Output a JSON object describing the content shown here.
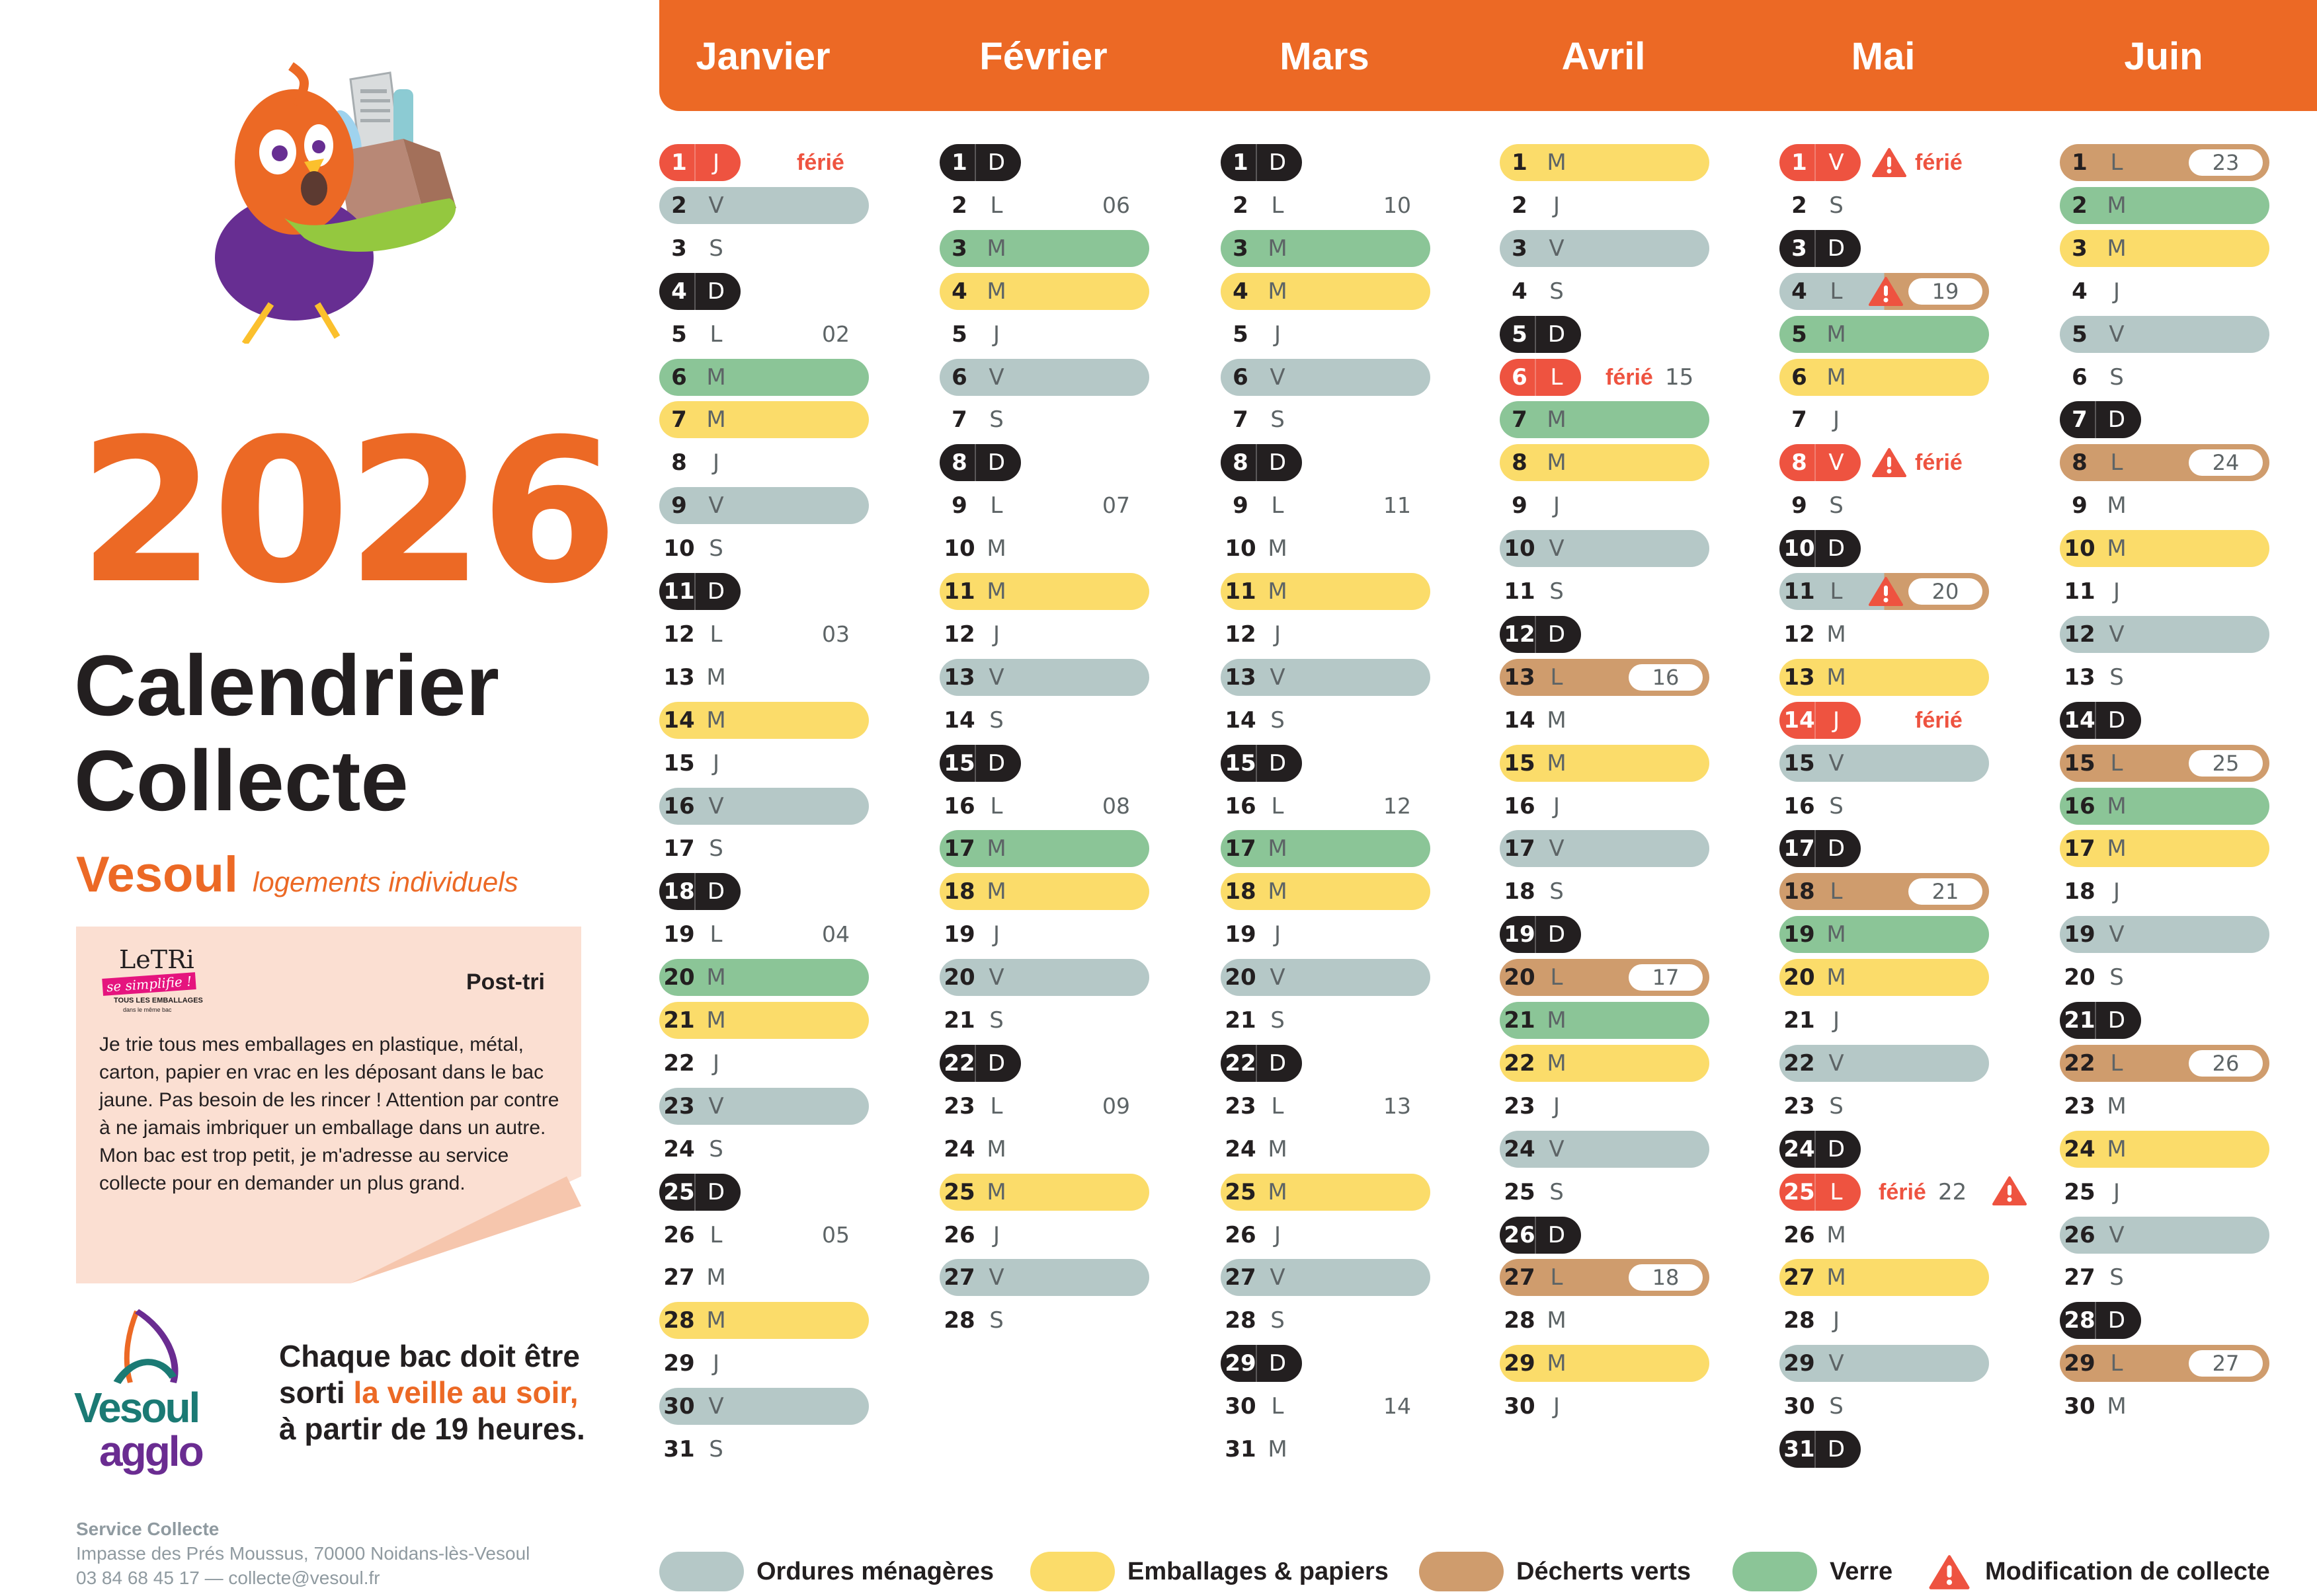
{
  "year": "2026",
  "title_line1": "Calendrier",
  "title_line2": "Collecte",
  "city": "Vesoul",
  "city_subtitle": "logements individuels",
  "postit": {
    "logo_line1": "LeTRi",
    "logo_line2": "se simplifie !",
    "logo_line3": "TOUS LES EMBALLAGES",
    "logo_line4": "dans le même bac",
    "title": "Post-tri",
    "text": "Je trie tous mes emballages en plastique, métal, carton, papier en vrac en les déposant dans le bac jaune. Pas besoin de les rincer ! Attention par contre à ne jamais imbriquer un emballage dans un autre. Mon bac est trop petit, je m'adresse au service collecte pour en demander un plus grand."
  },
  "logo": {
    "line1": "Vesoul",
    "line2": "agglo"
  },
  "notice": {
    "part1": "Chaque bac doit être",
    "part2": "sorti ",
    "highlight": "la veille au soir,",
    "part3": "à partir de 19 heures."
  },
  "contact": {
    "name": "Service Collecte",
    "address": "Impasse des Prés Moussus, 70000 Noidans-lès-Vesoul",
    "phone_email": "03 84 68 45 17  —  collecte@vesoul.fr"
  },
  "ferie_label": "férié",
  "colors": {
    "o": "#b5c8c7",
    "e": "#fbdc6a",
    "d": "#cf9c6d",
    "v": "#8bc597",
    "s": "#231f20",
    "h": "#ee5340",
    "accent": "#ec6925"
  },
  "legend": [
    {
      "key": "o",
      "label": "Ordures ménagères"
    },
    {
      "key": "e",
      "label": "Emballages & papiers"
    },
    {
      "key": "d",
      "label": "Décherts verts"
    },
    {
      "key": "v",
      "label": "Verre"
    },
    {
      "key": "warn",
      "label": "Modification de collecte"
    }
  ],
  "months": [
    {
      "name": "Janvier",
      "days": [
        {
          "n": "1",
          "d": "J",
          "t": "h",
          "ferie": true
        },
        {
          "n": "2",
          "d": "V",
          "t": "o"
        },
        {
          "n": "3",
          "d": "S"
        },
        {
          "n": "4",
          "d": "D",
          "t": "s"
        },
        {
          "n": "5",
          "d": "L",
          "week": "02"
        },
        {
          "n": "6",
          "d": "M",
          "t": "v"
        },
        {
          "n": "7",
          "d": "M",
          "t": "e"
        },
        {
          "n": "8",
          "d": "J"
        },
        {
          "n": "9",
          "d": "V",
          "t": "o"
        },
        {
          "n": "10",
          "d": "S"
        },
        {
          "n": "11",
          "d": "D",
          "t": "s"
        },
        {
          "n": "12",
          "d": "L",
          "week": "03"
        },
        {
          "n": "13",
          "d": "M"
        },
        {
          "n": "14",
          "d": "M",
          "t": "e"
        },
        {
          "n": "15",
          "d": "J"
        },
        {
          "n": "16",
          "d": "V",
          "t": "o"
        },
        {
          "n": "17",
          "d": "S"
        },
        {
          "n": "18",
          "d": "D",
          "t": "s"
        },
        {
          "n": "19",
          "d": "L",
          "week": "04"
        },
        {
          "n": "20",
          "d": "M",
          "t": "v"
        },
        {
          "n": "21",
          "d": "M",
          "t": "e"
        },
        {
          "n": "22",
          "d": "J"
        },
        {
          "n": "23",
          "d": "V",
          "t": "o"
        },
        {
          "n": "24",
          "d": "S"
        },
        {
          "n": "25",
          "d": "D",
          "t": "s"
        },
        {
          "n": "26",
          "d": "L",
          "week": "05"
        },
        {
          "n": "27",
          "d": "M"
        },
        {
          "n": "28",
          "d": "M",
          "t": "e"
        },
        {
          "n": "29",
          "d": "J"
        },
        {
          "n": "30",
          "d": "V",
          "t": "o"
        },
        {
          "n": "31",
          "d": "S"
        }
      ]
    },
    {
      "name": "Février",
      "days": [
        {
          "n": "1",
          "d": "D",
          "t": "s"
        },
        {
          "n": "2",
          "d": "L",
          "week": "06"
        },
        {
          "n": "3",
          "d": "M",
          "t": "v"
        },
        {
          "n": "4",
          "d": "M",
          "t": "e"
        },
        {
          "n": "5",
          "d": "J"
        },
        {
          "n": "6",
          "d": "V",
          "t": "o"
        },
        {
          "n": "7",
          "d": "S"
        },
        {
          "n": "8",
          "d": "D",
          "t": "s"
        },
        {
          "n": "9",
          "d": "L",
          "week": "07"
        },
        {
          "n": "10",
          "d": "M"
        },
        {
          "n": "11",
          "d": "M",
          "t": "e"
        },
        {
          "n": "12",
          "d": "J"
        },
        {
          "n": "13",
          "d": "V",
          "t": "o"
        },
        {
          "n": "14",
          "d": "S"
        },
        {
          "n": "15",
          "d": "D",
          "t": "s"
        },
        {
          "n": "16",
          "d": "L",
          "week": "08"
        },
        {
          "n": "17",
          "d": "M",
          "t": "v"
        },
        {
          "n": "18",
          "d": "M",
          "t": "e"
        },
        {
          "n": "19",
          "d": "J"
        },
        {
          "n": "20",
          "d": "V",
          "t": "o"
        },
        {
          "n": "21",
          "d": "S"
        },
        {
          "n": "22",
          "d": "D",
          "t": "s"
        },
        {
          "n": "23",
          "d": "L",
          "week": "09"
        },
        {
          "n": "24",
          "d": "M"
        },
        {
          "n": "25",
          "d": "M",
          "t": "e"
        },
        {
          "n": "26",
          "d": "J"
        },
        {
          "n": "27",
          "d": "V",
          "t": "o"
        },
        {
          "n": "28",
          "d": "S"
        }
      ]
    },
    {
      "name": "Mars",
      "days": [
        {
          "n": "1",
          "d": "D",
          "t": "s"
        },
        {
          "n": "2",
          "d": "L",
          "week": "10"
        },
        {
          "n": "3",
          "d": "M",
          "t": "v"
        },
        {
          "n": "4",
          "d": "M",
          "t": "e"
        },
        {
          "n": "5",
          "d": "J"
        },
        {
          "n": "6",
          "d": "V",
          "t": "o"
        },
        {
          "n": "7",
          "d": "S"
        },
        {
          "n": "8",
          "d": "D",
          "t": "s"
        },
        {
          "n": "9",
          "d": "L",
          "week": "11"
        },
        {
          "n": "10",
          "d": "M"
        },
        {
          "n": "11",
          "d": "M",
          "t": "e"
        },
        {
          "n": "12",
          "d": "J"
        },
        {
          "n": "13",
          "d": "V",
          "t": "o"
        },
        {
          "n": "14",
          "d": "S"
        },
        {
          "n": "15",
          "d": "D",
          "t": "s"
        },
        {
          "n": "16",
          "d": "L",
          "week": "12"
        },
        {
          "n": "17",
          "d": "M",
          "t": "v"
        },
        {
          "n": "18",
          "d": "M",
          "t": "e"
        },
        {
          "n": "19",
          "d": "J"
        },
        {
          "n": "20",
          "d": "V",
          "t": "o"
        },
        {
          "n": "21",
          "d": "S"
        },
        {
          "n": "22",
          "d": "D",
          "t": "s"
        },
        {
          "n": "23",
          "d": "L",
          "week": "13"
        },
        {
          "n": "24",
          "d": "M"
        },
        {
          "n": "25",
          "d": "M",
          "t": "e"
        },
        {
          "n": "26",
          "d": "J"
        },
        {
          "n": "27",
          "d": "V",
          "t": "o"
        },
        {
          "n": "28",
          "d": "S"
        },
        {
          "n": "29",
          "d": "D",
          "t": "s"
        },
        {
          "n": "30",
          "d": "L",
          "week": "14"
        },
        {
          "n": "31",
          "d": "M"
        }
      ]
    },
    {
      "name": "Avril",
      "days": [
        {
          "n": "1",
          "d": "M",
          "t": "e"
        },
        {
          "n": "2",
          "d": "J"
        },
        {
          "n": "3",
          "d": "V",
          "t": "o"
        },
        {
          "n": "4",
          "d": "S"
        },
        {
          "n": "5",
          "d": "D",
          "t": "s"
        },
        {
          "n": "6",
          "d": "L",
          "t": "h",
          "ferie": true,
          "fweek": "15"
        },
        {
          "n": "7",
          "d": "M",
          "t": "v"
        },
        {
          "n": "8",
          "d": "M",
          "t": "e"
        },
        {
          "n": "9",
          "d": "J"
        },
        {
          "n": "10",
          "d": "V",
          "t": "o"
        },
        {
          "n": "11",
          "d": "S"
        },
        {
          "n": "12",
          "d": "D",
          "t": "s"
        },
        {
          "n": "13",
          "d": "L",
          "t": "d",
          "badge": "16"
        },
        {
          "n": "14",
          "d": "M"
        },
        {
          "n": "15",
          "d": "M",
          "t": "e"
        },
        {
          "n": "16",
          "d": "J"
        },
        {
          "n": "17",
          "d": "V",
          "t": "o"
        },
        {
          "n": "18",
          "d": "S"
        },
        {
          "n": "19",
          "d": "D",
          "t": "s"
        },
        {
          "n": "20",
          "d": "L",
          "t": "d",
          "badge": "17"
        },
        {
          "n": "21",
          "d": "M",
          "t": "v"
        },
        {
          "n": "22",
          "d": "M",
          "t": "e"
        },
        {
          "n": "23",
          "d": "J"
        },
        {
          "n": "24",
          "d": "V",
          "t": "o"
        },
        {
          "n": "25",
          "d": "S"
        },
        {
          "n": "26",
          "d": "D",
          "t": "s"
        },
        {
          "n": "27",
          "d": "L",
          "t": "d",
          "badge": "18"
        },
        {
          "n": "28",
          "d": "M"
        },
        {
          "n": "29",
          "d": "M",
          "t": "e"
        },
        {
          "n": "30",
          "d": "J"
        }
      ]
    },
    {
      "name": "Mai",
      "days": [
        {
          "n": "1",
          "d": "V",
          "t": "h",
          "ferie": true,
          "warn": true
        },
        {
          "n": "2",
          "d": "S"
        },
        {
          "n": "3",
          "d": "D",
          "t": "s"
        },
        {
          "n": "4",
          "d": "L",
          "t": "split",
          "badge": "19",
          "warn": true
        },
        {
          "n": "5",
          "d": "M",
          "t": "v"
        },
        {
          "n": "6",
          "d": "M",
          "t": "e"
        },
        {
          "n": "7",
          "d": "J"
        },
        {
          "n": "8",
          "d": "V",
          "t": "h",
          "ferie": true,
          "warn": true
        },
        {
          "n": "9",
          "d": "S"
        },
        {
          "n": "10",
          "d": "D",
          "t": "s"
        },
        {
          "n": "11",
          "d": "L",
          "t": "split",
          "badge": "20",
          "warn": true
        },
        {
          "n": "12",
          "d": "M"
        },
        {
          "n": "13",
          "d": "M",
          "t": "e"
        },
        {
          "n": "14",
          "d": "J",
          "t": "h",
          "ferie": true
        },
        {
          "n": "15",
          "d": "V",
          "t": "o"
        },
        {
          "n": "16",
          "d": "S"
        },
        {
          "n": "17",
          "d": "D",
          "t": "s"
        },
        {
          "n": "18",
          "d": "L",
          "t": "d",
          "badge": "21"
        },
        {
          "n": "19",
          "d": "M",
          "t": "v"
        },
        {
          "n": "20",
          "d": "M",
          "t": "e"
        },
        {
          "n": "21",
          "d": "J"
        },
        {
          "n": "22",
          "d": "V",
          "t": "o"
        },
        {
          "n": "23",
          "d": "S"
        },
        {
          "n": "24",
          "d": "D",
          "t": "s"
        },
        {
          "n": "25",
          "d": "L",
          "t": "h",
          "ferie": true,
          "fweek": "22",
          "warn_right": true
        },
        {
          "n": "26",
          "d": "M"
        },
        {
          "n": "27",
          "d": "M",
          "t": "e"
        },
        {
          "n": "28",
          "d": "J"
        },
        {
          "n": "29",
          "d": "V",
          "t": "o"
        },
        {
          "n": "30",
          "d": "S"
        },
        {
          "n": "31",
          "d": "D",
          "t": "s"
        }
      ]
    },
    {
      "name": "Juin",
      "days": [
        {
          "n": "1",
          "d": "L",
          "t": "d",
          "badge": "23"
        },
        {
          "n": "2",
          "d": "M",
          "t": "v"
        },
        {
          "n": "3",
          "d": "M",
          "t": "e"
        },
        {
          "n": "4",
          "d": "J"
        },
        {
          "n": "5",
          "d": "V",
          "t": "o"
        },
        {
          "n": "6",
          "d": "S"
        },
        {
          "n": "7",
          "d": "D",
          "t": "s"
        },
        {
          "n": "8",
          "d": "L",
          "t": "d",
          "badge": "24"
        },
        {
          "n": "9",
          "d": "M"
        },
        {
          "n": "10",
          "d": "M",
          "t": "e"
        },
        {
          "n": "11",
          "d": "J"
        },
        {
          "n": "12",
          "d": "V",
          "t": "o"
        },
        {
          "n": "13",
          "d": "S"
        },
        {
          "n": "14",
          "d": "D",
          "t": "s"
        },
        {
          "n": "15",
          "d": "L",
          "t": "d",
          "badge": "25"
        },
        {
          "n": "16",
          "d": "M",
          "t": "v"
        },
        {
          "n": "17",
          "d": "M",
          "t": "e"
        },
        {
          "n": "18",
          "d": "J"
        },
        {
          "n": "19",
          "d": "V",
          "t": "o"
        },
        {
          "n": "20",
          "d": "S"
        },
        {
          "n": "21",
          "d": "D",
          "t": "s"
        },
        {
          "n": "22",
          "d": "L",
          "t": "d",
          "badge": "26"
        },
        {
          "n": "23",
          "d": "M"
        },
        {
          "n": "24",
          "d": "M",
          "t": "e"
        },
        {
          "n": "25",
          "d": "J"
        },
        {
          "n": "26",
          "d": "V",
          "t": "o"
        },
        {
          "n": "27",
          "d": "S"
        },
        {
          "n": "28",
          "d": "D",
          "t": "s"
        },
        {
          "n": "29",
          "d": "L",
          "t": "d",
          "badge": "27"
        },
        {
          "n": "30",
          "d": "M"
        }
      ]
    }
  ]
}
